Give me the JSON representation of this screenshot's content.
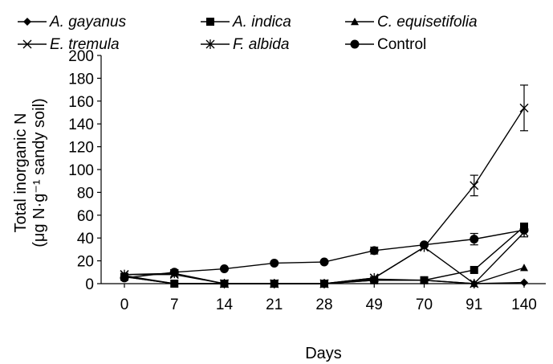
{
  "chart_data": {
    "type": "line",
    "xlabel": "Days",
    "ylabel_line1": "Total inorganic N",
    "ylabel_line2": "(μg N·g⁻¹ sandy soil)",
    "ylim": [
      0,
      200
    ],
    "yticks": [
      0,
      20,
      40,
      60,
      80,
      100,
      120,
      140,
      160,
      180,
      200
    ],
    "categories": [
      "0",
      "7",
      "14",
      "21",
      "28",
      "49",
      "70",
      "91",
      "140"
    ],
    "grid": false,
    "legend_position": "top",
    "series": [
      {
        "name": "A. gayanus",
        "marker": "diamond",
        "italic": true,
        "values": [
          7,
          0,
          0,
          0,
          0,
          4,
          3,
          0,
          1
        ]
      },
      {
        "name": "A. indica",
        "marker": "square",
        "italic": true,
        "values": [
          6,
          0,
          0,
          0,
          0,
          3,
          3,
          12,
          50
        ]
      },
      {
        "name": "C. equisetifolia",
        "marker": "triangle",
        "italic": true,
        "values": [
          6,
          0,
          0,
          0,
          0,
          3,
          3,
          0,
          14
        ]
      },
      {
        "name": "E. tremula",
        "marker": "x",
        "italic": true,
        "values": [
          8,
          8,
          0,
          0,
          0,
          5,
          32,
          86,
          154
        ],
        "errors": [
          0,
          0,
          0,
          0,
          0,
          0,
          0,
          9,
          20
        ]
      },
      {
        "name": "F. albida",
        "marker": "star",
        "italic": true,
        "values": [
          8,
          9,
          0,
          0,
          0,
          5,
          32,
          0,
          45
        ],
        "errors": [
          0,
          0,
          0,
          0,
          0,
          0,
          0,
          0,
          4
        ]
      },
      {
        "name": "Control",
        "marker": "circle",
        "italic": false,
        "values": [
          5,
          10,
          13,
          18,
          19,
          29,
          34,
          39,
          47
        ],
        "errors": [
          0,
          0,
          0,
          0,
          0,
          3,
          0,
          5,
          0
        ]
      }
    ]
  }
}
